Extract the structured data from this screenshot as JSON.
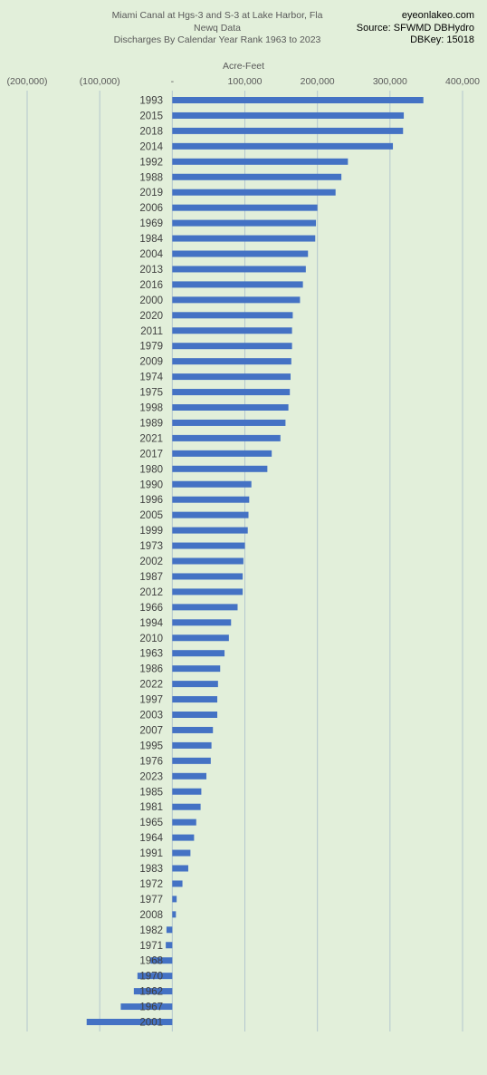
{
  "title": {
    "line1": "Miami Canal at Hgs-3 and S-3 at Lake Harbor, Fla",
    "line2": "Newq Data",
    "line3": "Discharges By Calendar Year Rank 1963 to 2023"
  },
  "source": {
    "site": "eyeonlakeo.com",
    "source": "Source: SFWMD DBHydro",
    "dbkey": "DBKey: 15018"
  },
  "colors": {
    "bar": "#4472c4",
    "background": "#e2efda",
    "grid": "#b4c7ce"
  },
  "chart_data": {
    "type": "bar",
    "orientation": "horizontal",
    "xlabel": "Acre-Feet",
    "xlim": [
      -200000,
      400000
    ],
    "x_ticks": [
      -200000,
      -100000,
      0,
      100000,
      200000,
      300000,
      400000
    ],
    "x_tick_labels": [
      "(200,000)",
      "(100,000)",
      "-",
      "100,000",
      "200,000",
      "300,000",
      "400,000"
    ],
    "grid": "vertical",
    "categories": [
      "1993",
      "2015",
      "2018",
      "2014",
      "1992",
      "1988",
      "2019",
      "2006",
      "1969",
      "1984",
      "2004",
      "2013",
      "2016",
      "2000",
      "2020",
      "2011",
      "1979",
      "2009",
      "1974",
      "1975",
      "1998",
      "1989",
      "2021",
      "2017",
      "1980",
      "1990",
      "1996",
      "2005",
      "1999",
      "1973",
      "2002",
      "1987",
      "2012",
      "1966",
      "1994",
      "2010",
      "1963",
      "1986",
      "2022",
      "1997",
      "2003",
      "2007",
      "1995",
      "1976",
      "2023",
      "1985",
      "1981",
      "1965",
      "1964",
      "1991",
      "1983",
      "1972",
      "1977",
      "2008",
      "1982",
      "1971",
      "1968",
      "1970",
      "1962",
      "1967",
      "2001"
    ],
    "values": [
      346000,
      319000,
      318000,
      304000,
      242000,
      233000,
      225000,
      200000,
      198000,
      197000,
      187000,
      184000,
      180000,
      176000,
      166000,
      165000,
      165000,
      164000,
      163000,
      162000,
      160000,
      156000,
      149000,
      137000,
      131000,
      109000,
      106000,
      105000,
      104000,
      100000,
      98000,
      97000,
      97000,
      90000,
      81000,
      78000,
      72000,
      66000,
      63000,
      62000,
      62000,
      56000,
      54000,
      53000,
      47000,
      40000,
      39000,
      33000,
      30000,
      25000,
      22000,
      14000,
      6000,
      5000,
      -8000,
      -9000,
      -30000,
      -48000,
      -53000,
      -71000,
      -118000
    ]
  }
}
